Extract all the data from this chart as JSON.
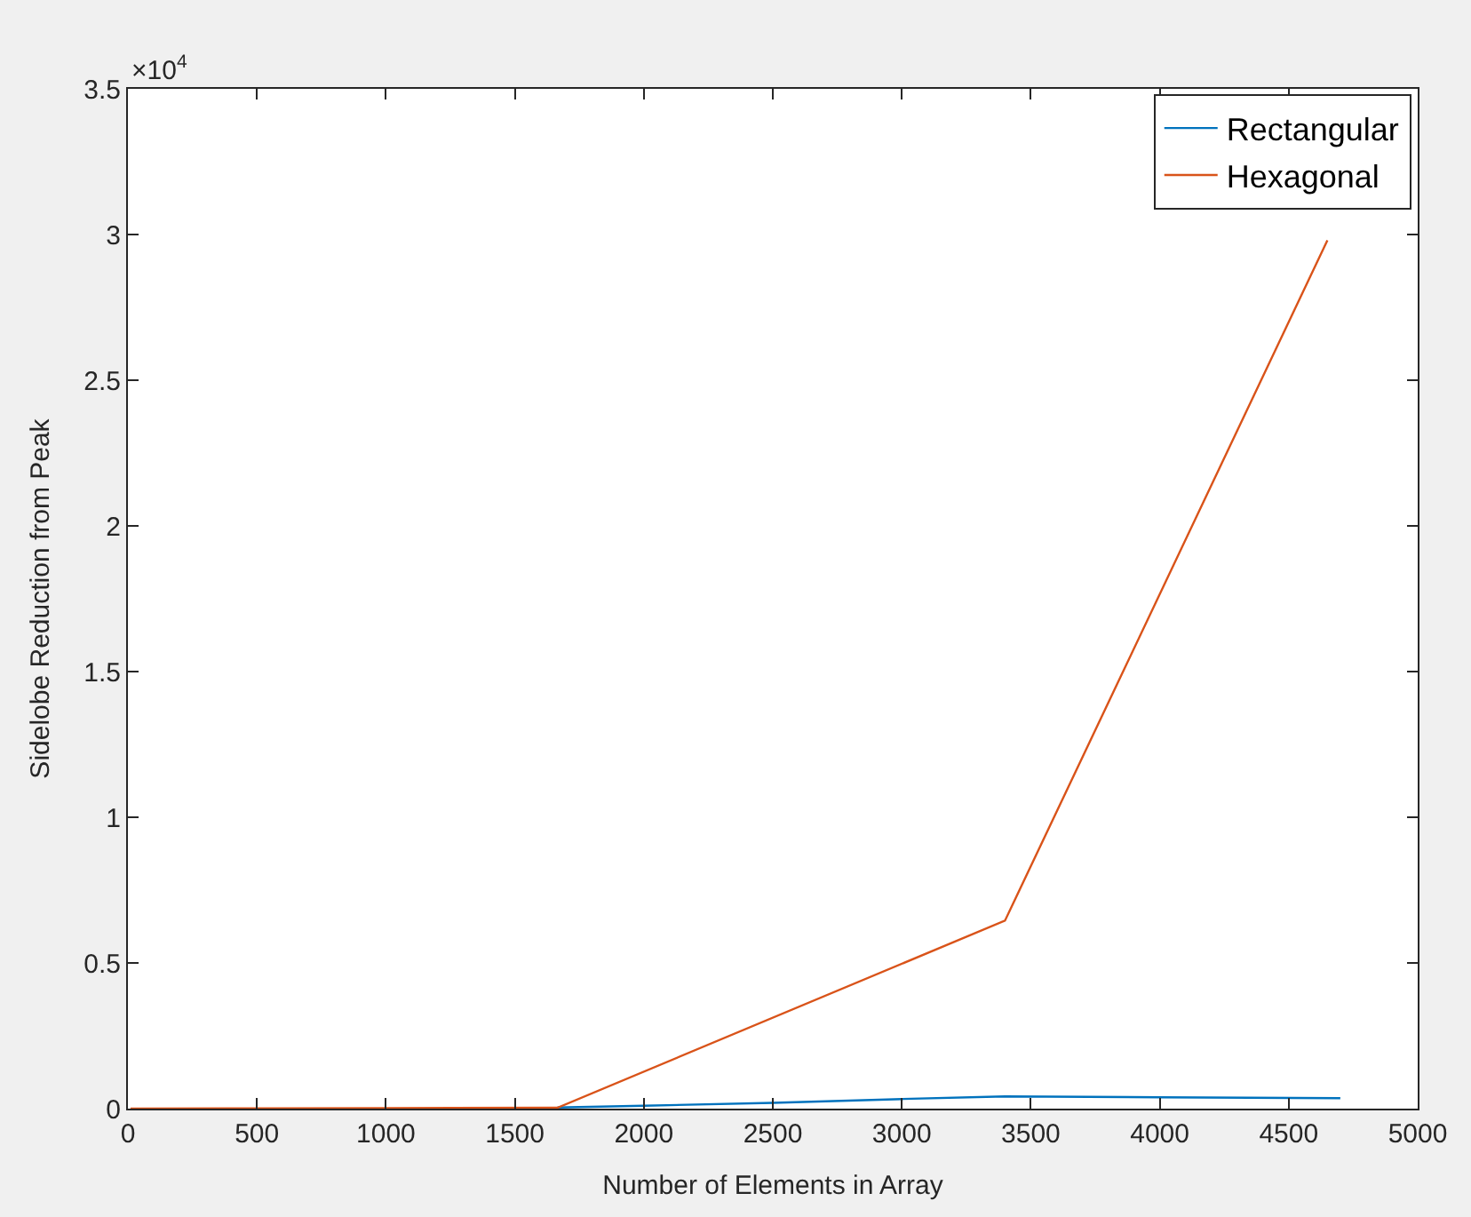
{
  "chart_data": {
    "type": "line",
    "xlabel": "Number of Elements in Array",
    "ylabel": "Sidelobe Reduction from Peak",
    "annotations": [
      "×10$^{4}$"
    ],
    "xlim": [
      0,
      5000
    ],
    "xticks": [
      0,
      500,
      1000,
      1500,
      2000,
      2500,
      3000,
      3500,
      4000,
      4500,
      5000
    ],
    "ylim": [
      0,
      3.5
    ],
    "yticks": [
      0,
      0.5,
      1,
      1.5,
      2,
      2.5,
      3,
      3.5
    ],
    "legend": "top right",
    "line_style": "solid",
    "marker": "none",
    "series": [
      {
        "name": "Rectangular",
        "color": "#0072bd",
        "x": [
          1665,
          2000,
          2500,
          3000,
          3400,
          4000,
          4700
        ],
        "values": [
          0.004,
          0.01,
          0.02,
          0.033,
          0.042,
          0.039,
          0.036
        ]
      },
      {
        "name": "Hexagonal",
        "color": "#d95319",
        "x": [
          10,
          500,
          1000,
          1665,
          3400,
          4650
        ],
        "values": [
          0,
          0.001,
          0.002,
          0.003,
          0.645,
          2.98
        ]
      }
    ]
  }
}
